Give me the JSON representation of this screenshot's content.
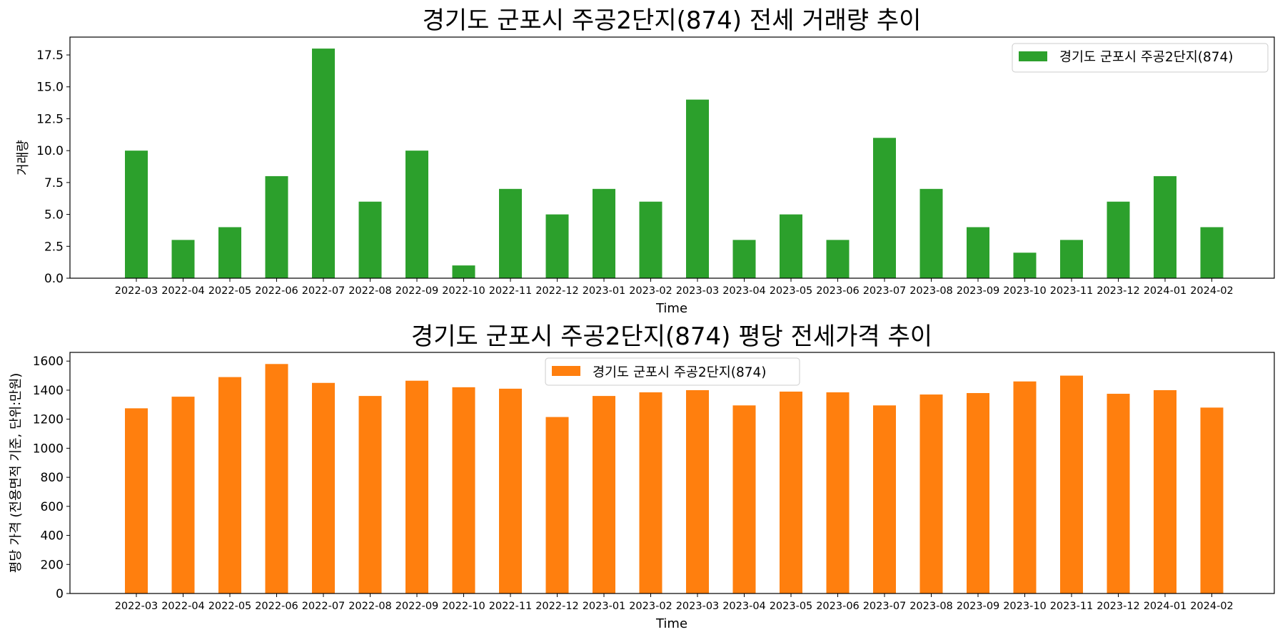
{
  "chart_data": [
    {
      "type": "bar",
      "title": "경기도 군포시 주공2단지(874) 전세 거래량 추이",
      "xlabel": "Time",
      "ylabel": "거래량",
      "ylim": [
        0,
        18.9
      ],
      "yticks": [
        0.0,
        2.5,
        5.0,
        7.5,
        10.0,
        12.5,
        15.0,
        17.5
      ],
      "ytick_labels": [
        "0.0",
        "2.5",
        "5.0",
        "7.5",
        "10.0",
        "12.5",
        "15.0",
        "17.5"
      ],
      "grid": false,
      "legend_position": "top-right",
      "categories": [
        "2022-03",
        "2022-04",
        "2022-05",
        "2022-06",
        "2022-07",
        "2022-08",
        "2022-09",
        "2022-10",
        "2022-11",
        "2022-12",
        "2023-01",
        "2023-02",
        "2023-03",
        "2023-04",
        "2023-05",
        "2023-06",
        "2023-07",
        "2023-08",
        "2023-09",
        "2023-10",
        "2023-11",
        "2023-12",
        "2024-01",
        "2024-02"
      ],
      "series": [
        {
          "name": "경기도 군포시 주공2단지(874)",
          "color": "#2ca02c",
          "values": [
            10,
            3,
            4,
            8,
            18,
            6,
            10,
            1,
            7,
            5,
            7,
            6,
            14,
            3,
            5,
            3,
            11,
            7,
            4,
            2,
            3,
            6,
            8,
            4
          ]
        }
      ]
    },
    {
      "type": "bar",
      "title": "경기도 군포시 주공2단지(874) 평당 전세가격 추이",
      "xlabel": "Time",
      "ylabel": "평당 가격 (전용면적 기준, 단위:만원)",
      "ylim": [
        0,
        1660
      ],
      "yticks": [
        0,
        200,
        400,
        600,
        800,
        1000,
        1200,
        1400,
        1600
      ],
      "ytick_labels": [
        "0",
        "200",
        "400",
        "600",
        "800",
        "1000",
        "1200",
        "1400",
        "1600"
      ],
      "grid": false,
      "legend_position": "top-center",
      "categories": [
        "2022-03",
        "2022-04",
        "2022-05",
        "2022-06",
        "2022-07",
        "2022-08",
        "2022-09",
        "2022-10",
        "2022-11",
        "2022-12",
        "2023-01",
        "2023-02",
        "2023-03",
        "2023-04",
        "2023-05",
        "2023-06",
        "2023-07",
        "2023-08",
        "2023-09",
        "2023-10",
        "2023-11",
        "2023-12",
        "2024-01",
        "2024-02"
      ],
      "series": [
        {
          "name": "경기도 군포시 주공2단지(874)",
          "color": "#ff7f0e",
          "values": [
            1275,
            1355,
            1490,
            1580,
            1450,
            1360,
            1465,
            1420,
            1410,
            1215,
            1360,
            1385,
            1400,
            1295,
            1390,
            1385,
            1295,
            1370,
            1380,
            1460,
            1500,
            1375,
            1400,
            1280
          ]
        }
      ]
    }
  ]
}
